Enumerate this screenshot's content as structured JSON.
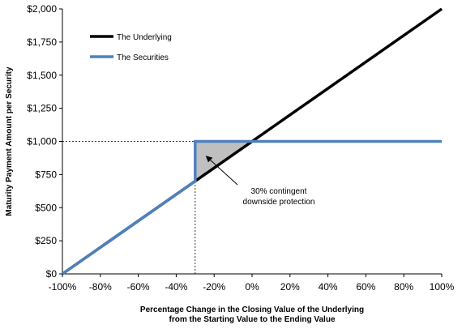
{
  "chart_data": {
    "type": "line",
    "title": "",
    "xlabel": [
      "Percentage Change in the Closing Value of the Underlying",
      "from the Starting Value to the Ending Value"
    ],
    "ylabel": "Maturity Payment Amount per Security",
    "xlim": [
      -100,
      100
    ],
    "ylim": [
      0,
      2000
    ],
    "x_ticks": [
      -100,
      -80,
      -60,
      -40,
      -20,
      0,
      20,
      40,
      60,
      80,
      100
    ],
    "x_tick_labels": [
      "-100%",
      "-80%",
      "-60%",
      "-40%",
      "-20%",
      "0%",
      "20%",
      "40%",
      "60%",
      "80%",
      "100%"
    ],
    "y_ticks": [
      0,
      250,
      500,
      750,
      1000,
      1250,
      1500,
      1750,
      2000
    ],
    "y_tick_labels": [
      "$0",
      "$250",
      "$500",
      "$750",
      "$1,000",
      "$1,250",
      "$1,500",
      "$1,750",
      "$2,000"
    ],
    "grid": false,
    "legend_position": "top-left",
    "series": [
      {
        "name": "The Underlying",
        "color": "#000000",
        "x": [
          -100,
          100
        ],
        "y": [
          0,
          2000
        ]
      },
      {
        "name": "The Securities",
        "color": "#4f81bd",
        "x": [
          -100,
          -30,
          -30,
          100
        ],
        "y": [
          0,
          700,
          1000,
          1000
        ]
      }
    ],
    "reference_lines": {
      "horizontal_y": 1000,
      "horizontal_x_range": [
        -100,
        -30
      ],
      "vertical_x": -30,
      "vertical_y_range": [
        0,
        1000
      ],
      "style": "dashed"
    },
    "shaded_region": {
      "color": "#bfbfbf",
      "points": [
        [
          -30,
          700
        ],
        [
          -30,
          1000
        ],
        [
          0,
          1000
        ]
      ]
    },
    "annotation": {
      "lines": [
        "30% contingent",
        "downside protection"
      ],
      "arrow_target": [
        -25,
        900
      ]
    }
  }
}
